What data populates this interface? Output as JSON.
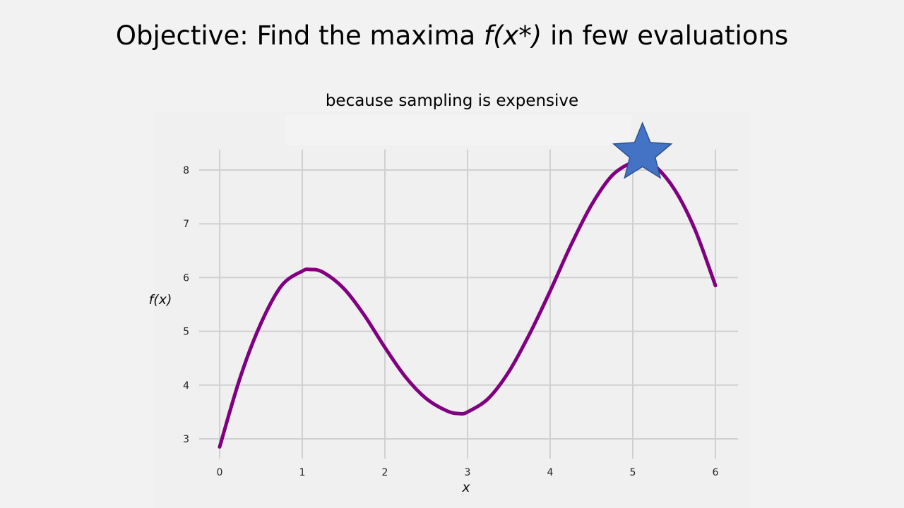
{
  "slide": {
    "title_lead": "Objective: Find the maxima ",
    "title_math": "f(x*)",
    "title_trail": " in few evaluations",
    "subtitle": "because sampling is expensive"
  },
  "colors": {
    "curve": "#800080",
    "star_fill": "#4472c4",
    "star_stroke": "#2f528f",
    "grid": "#d0d0d0"
  },
  "chart_data": {
    "type": "line",
    "title": "",
    "xlabel": "x",
    "ylabel": "f(x)",
    "xlim": [
      0,
      6
    ],
    "ylim": [
      2.75,
      8.4
    ],
    "xticks": [
      0,
      1,
      2,
      3,
      4,
      5,
      6
    ],
    "yticks": [
      3,
      4,
      5,
      6,
      7,
      8
    ],
    "grid": true,
    "series": [
      {
        "x": [
          0,
          0.25,
          0.5,
          0.75,
          1.0,
          1.1,
          1.25,
          1.5,
          1.75,
          2.0,
          2.25,
          2.5,
          2.75,
          2.9,
          3.0,
          3.25,
          3.5,
          3.75,
          4.0,
          4.25,
          4.5,
          4.75,
          5.0,
          5.1,
          5.25,
          5.5,
          5.75,
          6.0
        ],
        "y": [
          2.85,
          4.15,
          5.15,
          5.85,
          6.12,
          6.15,
          6.1,
          5.8,
          5.3,
          4.7,
          4.15,
          3.75,
          3.52,
          3.47,
          3.5,
          3.75,
          4.25,
          4.95,
          5.75,
          6.6,
          7.35,
          7.9,
          8.15,
          8.18,
          8.1,
          7.65,
          6.9,
          5.85
        ]
      }
    ],
    "annotations": [
      {
        "type": "star",
        "x": 5.1,
        "y": 8.18
      }
    ]
  }
}
